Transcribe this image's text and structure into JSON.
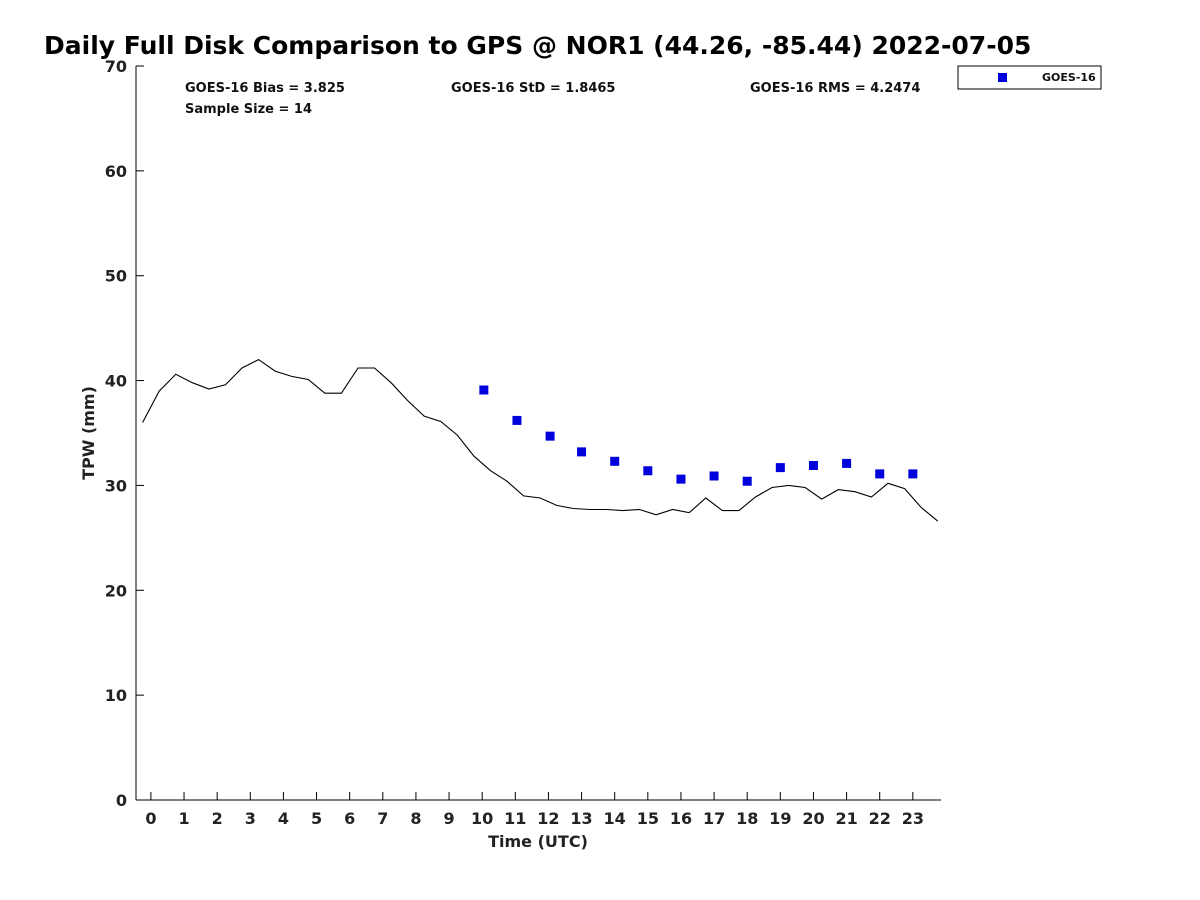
{
  "chart_data": {
    "type": "scatter",
    "title": "Daily Full Disk Comparison to GPS @ NOR1 (44.26, -85.44) 2022-07-05",
    "xlabel": "Time (UTC)",
    "ylabel": "TPW (mm)",
    "xlim": [
      -0.45,
      23.85
    ],
    "ylim": [
      0,
      70
    ],
    "x_ticks": [
      0,
      1,
      2,
      3,
      4,
      5,
      6,
      7,
      8,
      9,
      10,
      11,
      12,
      13,
      14,
      15,
      16,
      17,
      18,
      19,
      20,
      21,
      22,
      23
    ],
    "y_ticks": [
      0,
      10,
      20,
      30,
      40,
      50,
      60,
      70
    ],
    "grid": false,
    "legend": {
      "placement": "top-right",
      "entries": [
        "GOES-16"
      ]
    },
    "stats": {
      "bias": "GOES-16 Bias = 3.825",
      "std": "GOES-16 StD = 1.8465",
      "rms": "GOES-16 RMS = 4.2474",
      "sample": "Sample Size = 14"
    },
    "series": [
      {
        "name": "GOES-16",
        "kind": "scatter",
        "color": "#0000dd",
        "x": [
          10.05,
          11.05,
          12.05,
          13.0,
          14.0,
          15.0,
          16.0,
          17.0,
          18.0,
          19.0,
          20.0,
          21.0,
          22.0,
          23.0
        ],
        "y": [
          39.1,
          36.2,
          34.7,
          33.2,
          32.3,
          31.4,
          30.6,
          30.9,
          30.4,
          31.7,
          31.9,
          32.1,
          31.1,
          31.1
        ]
      },
      {
        "kind": "line",
        "color": "#000000",
        "x": [
          -0.25,
          0.25,
          0.75,
          1.25,
          1.75,
          2.25,
          2.75,
          3.25,
          3.75,
          4.25,
          4.75,
          5.25,
          5.75,
          6.25,
          6.75,
          7.25,
          7.75,
          8.25,
          8.75,
          9.25,
          9.75,
          10.25,
          10.75,
          11.25,
          11.75,
          12.25,
          12.75,
          13.25,
          13.75,
          14.25,
          14.75,
          15.25,
          15.75,
          16.25,
          16.75,
          17.25,
          17.75,
          18.25,
          18.75,
          19.25,
          19.75,
          20.25,
          20.75,
          21.25,
          21.75,
          22.25,
          22.75,
          23.25,
          23.75
        ],
        "y": [
          36.0,
          39.0,
          40.6,
          39.8,
          39.2,
          39.6,
          41.2,
          42.0,
          40.9,
          40.4,
          40.1,
          38.8,
          38.8,
          41.2,
          41.2,
          39.8,
          38.1,
          36.6,
          36.1,
          34.8,
          32.8,
          31.4,
          30.4,
          29.0,
          28.8,
          28.1,
          27.8,
          27.7,
          27.7,
          27.6,
          27.7,
          27.2,
          27.7,
          27.4,
          28.8,
          27.6,
          27.6,
          28.9,
          29.8,
          30.0,
          29.8,
          28.7,
          29.6,
          29.4,
          28.9,
          30.2,
          29.7,
          27.9,
          26.6
        ]
      }
    ]
  }
}
